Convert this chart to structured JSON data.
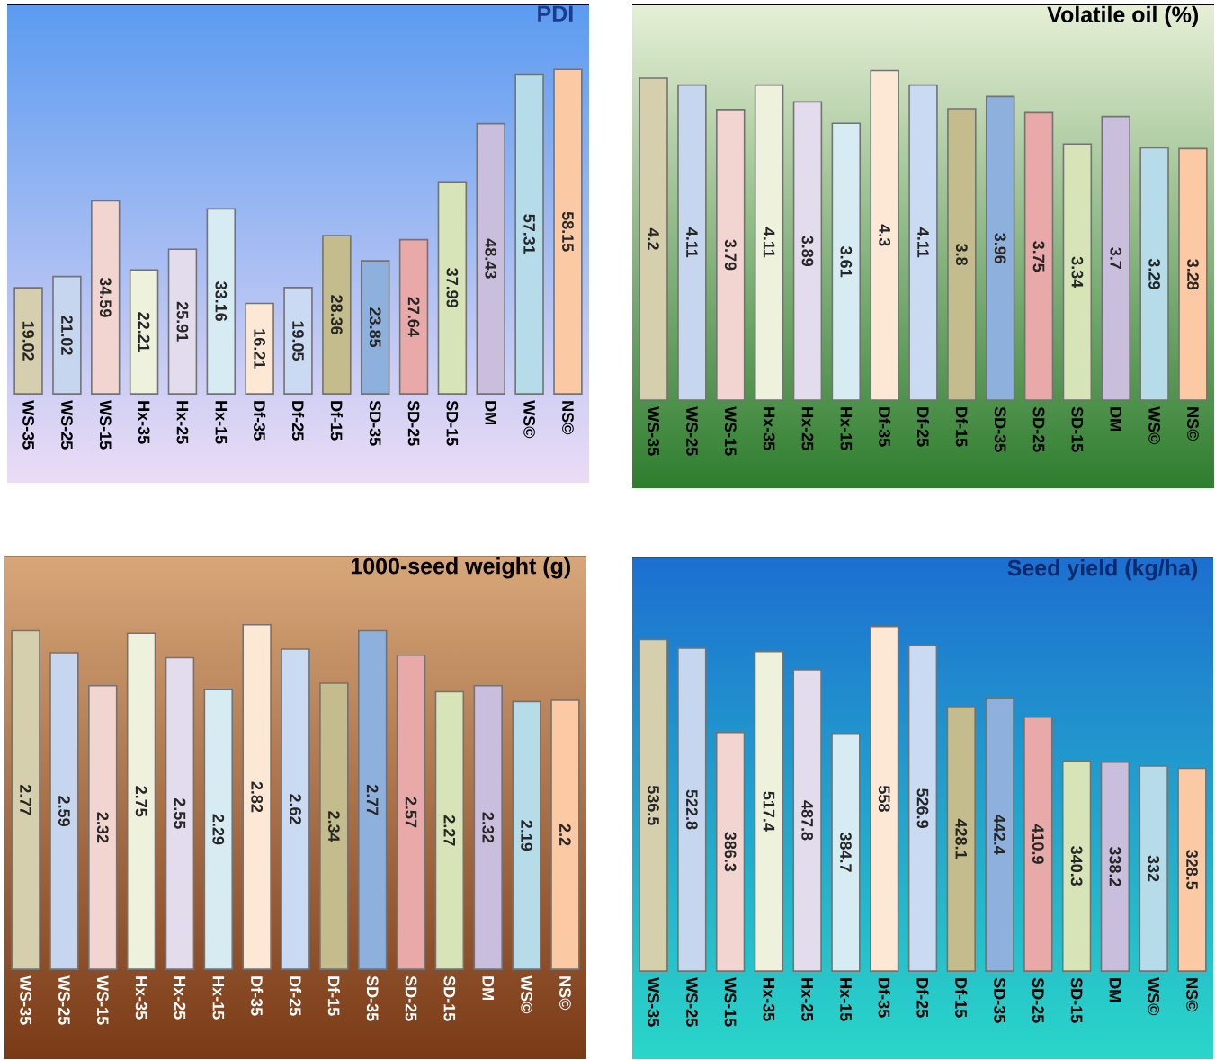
{
  "chart_data": [
    {
      "type": "bar",
      "title": "PDI",
      "categories": [
        "WS-35",
        "WS-25",
        "WS-15",
        "Hx-35",
        "Hx-25",
        "Hx-15",
        "Df-35",
        "Df-25",
        "Df-15",
        "SD-35",
        "SD-25",
        "SD-15",
        "DM",
        "WS©",
        "NS©"
      ],
      "values": [
        19.02,
        21.02,
        34.59,
        22.21,
        25.91,
        33.16,
        16.21,
        19.05,
        28.36,
        23.85,
        27.64,
        37.99,
        48.43,
        57.31,
        58.15
      ],
      "colors": [
        "#d6cfae",
        "#c5d6ee",
        "#f2d5d0",
        "#eef2dc",
        "#e3dced",
        "#d7ecf2",
        "#fde8d6",
        "#c9daf2",
        "#c4bc8c",
        "#8eb0dc",
        "#e8a9a8",
        "#d7e4b7",
        "#c9bedb",
        "#b6dbe9",
        "#fbc9a3"
      ],
      "data_labels": true,
      "tick_labels": "x"
    },
    {
      "type": "bar",
      "title": "Volatile oil (%)",
      "categories": [
        "WS-35",
        "WS-25",
        "WS-15",
        "Hx-35",
        "Hx-25",
        "Hx-15",
        "Df-35",
        "Df-25",
        "Df-15",
        "SD-35",
        "SD-25",
        "SD-15",
        "DM",
        "WS©",
        "NS©"
      ],
      "values": [
        4.2,
        4.11,
        3.79,
        4.11,
        3.89,
        3.61,
        4.3,
        4.11,
        3.8,
        3.96,
        3.75,
        3.34,
        3.7,
        3.29,
        3.28
      ],
      "colors": [
        "#d6cfae",
        "#c5d6ee",
        "#f2d5d0",
        "#eef2dc",
        "#e3dced",
        "#d7ecf2",
        "#fde8d6",
        "#c9daf2",
        "#c4bc8c",
        "#8eb0dc",
        "#e8a9a8",
        "#d7e4b7",
        "#c9bedb",
        "#b6dbe9",
        "#fbc9a3"
      ],
      "data_labels": true,
      "tick_labels": "x"
    },
    {
      "type": "bar",
      "title": "1000-seed weight (g)",
      "categories": [
        "WS-35",
        "WS-25",
        "WS-15",
        "Hx-35",
        "Hx-25",
        "Hx-15",
        "Df-35",
        "Df-25",
        "Df-15",
        "SD-35",
        "SD-25",
        "SD-15",
        "DM",
        "WS©",
        "NS©"
      ],
      "values": [
        2.77,
        2.59,
        2.32,
        2.75,
        2.55,
        2.29,
        2.82,
        2.62,
        2.34,
        2.77,
        2.57,
        2.27,
        2.32,
        2.19,
        2.2
      ],
      "colors": [
        "#d6cfae",
        "#c5d6ee",
        "#f2d5d0",
        "#eef2dc",
        "#e3dced",
        "#d7ecf2",
        "#fde8d6",
        "#c9daf2",
        "#c4bc8c",
        "#8eb0dc",
        "#e8a9a8",
        "#d7e4b7",
        "#c9bedb",
        "#b6dbe9",
        "#fbc9a3"
      ],
      "data_labels": true,
      "tick_labels": "x"
    },
    {
      "type": "bar",
      "title": "Seed yield (kg/ha)",
      "categories": [
        "WS-35",
        "WS-25",
        "WS-15",
        "Hx-35",
        "Hx-25",
        "Hx-15",
        "Df-35",
        "Df-25",
        "Df-15",
        "SD-35",
        "SD-25",
        "SD-15",
        "DM",
        "WS©",
        "NS©"
      ],
      "values": [
        536.5,
        522.8,
        386.3,
        517.4,
        487.8,
        384.7,
        558,
        526.9,
        428.1,
        442.4,
        410.9,
        340.3,
        338.2,
        332,
        328.5
      ],
      "colors": [
        "#d6cfae",
        "#c5d6ee",
        "#f2d5d0",
        "#eef2dc",
        "#e3dced",
        "#d7ecf2",
        "#fde8d6",
        "#c9daf2",
        "#c4bc8c",
        "#8eb0dc",
        "#e8a9a8",
        "#d7e4b7",
        "#c9bedb",
        "#b6dbe9",
        "#fbc9a3"
      ],
      "data_labels": true,
      "tick_labels": "x"
    }
  ]
}
